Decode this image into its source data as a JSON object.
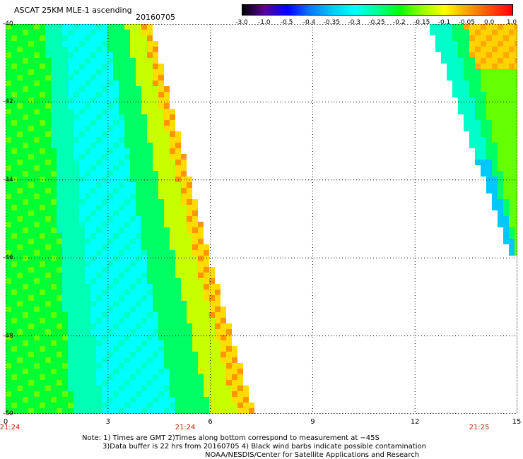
{
  "header": {
    "title": "ASCAT 25KM MLE-1 ascending",
    "date": "20160705"
  },
  "colorbar": {
    "labels": [
      "-3.0",
      "-1.0",
      "-0.5",
      "-0.4",
      "-0.35",
      "-0.3",
      "-0.25",
      "-0.2",
      "-0.15",
      "-0.1",
      "-0.05",
      "0.0",
      "1.0"
    ],
    "colors": [
      "#000000",
      "#5a00a0",
      "#0000ff",
      "#0078ff",
      "#00c8ff",
      "#00ffff",
      "#00ff96",
      "#00ff00",
      "#96ff00",
      "#ffff00",
      "#ffa000",
      "#ff5000",
      "#ff0000"
    ]
  },
  "axes": {
    "y_ticks": [
      "-40",
      "-42",
      "-44",
      "-46",
      "-48",
      "-50"
    ],
    "x_ticks": [
      "0",
      "3",
      "6",
      "9",
      "12",
      "15"
    ],
    "time_labels": [
      "21:24",
      "21:24",
      "21:25"
    ]
  },
  "chart_data": {
    "type": "heatmap",
    "x_range": [
      0,
      15
    ],
    "y_range": [
      -50,
      -40
    ],
    "colorbar_range": [
      -3.0,
      1.0
    ],
    "grid": true,
    "swaths": [
      {
        "label": "west swath",
        "x_left_edge": 0,
        "x_right_edge_at_y": [
          [
            -40,
            4.2
          ],
          [
            -46,
            5.9
          ],
          [
            -50,
            7.2
          ]
        ]
      },
      {
        "label": "east swath",
        "x_left_edge_at_y": [
          [
            -40,
            12.5
          ],
          [
            -46,
            14.9
          ]
        ],
        "x_right_edge": 15
      }
    ]
  },
  "notes": {
    "line1": "Note: 1) Times are GMT 2)Times along bottom correspond to measurement at −45S",
    "line2": "3)Data buffer is 22 hrs from 20160705 4) Black wind barbs indicate possible contamination",
    "line3": "NOAA/NESDIS/Center for Satellite Applications and Research"
  }
}
